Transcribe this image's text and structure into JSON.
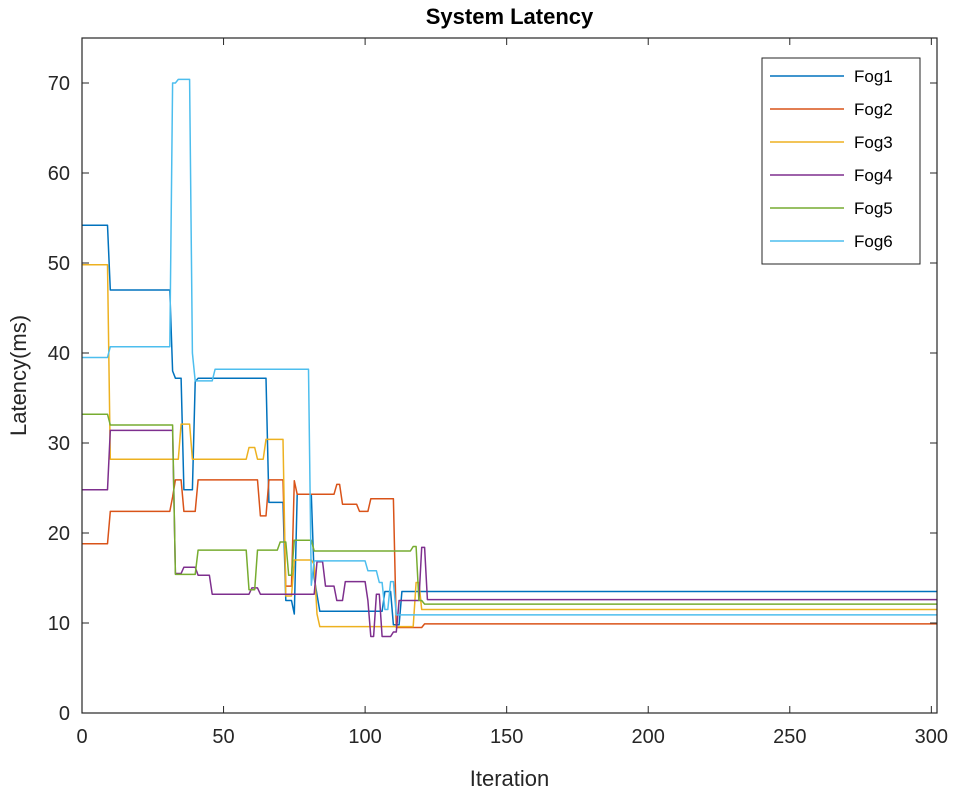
{
  "chart_data": {
    "type": "line",
    "title": "System Latency",
    "xlabel": "Iteration",
    "ylabel": "Latency(ms)",
    "xlim": [
      0,
      302
    ],
    "ylim": [
      0,
      75
    ],
    "xticks": [
      0,
      50,
      100,
      150,
      200,
      250,
      300
    ],
    "yticks": [
      0,
      10,
      20,
      30,
      40,
      50,
      60,
      70
    ],
    "legend_position": "top-right",
    "series": [
      {
        "name": "Fog1",
        "color": "#0072BD",
        "x": [
          0,
          9,
          10,
          31,
          32,
          33,
          35,
          36,
          39,
          40,
          41,
          65,
          66,
          71,
          72,
          74,
          75,
          76,
          81,
          82,
          84,
          106,
          107,
          109,
          110,
          112,
          113,
          302
        ],
        "y": [
          54.2,
          54.2,
          47,
          47,
          38,
          37.2,
          37.2,
          24.8,
          24.8,
          36.8,
          37.2,
          37.2,
          23.4,
          23.4,
          12.5,
          12.5,
          11,
          24.3,
          24.3,
          15,
          11.3,
          11.3,
          13.5,
          13.5,
          9.8,
          9.8,
          13.5,
          13.5
        ]
      },
      {
        "name": "Fog2",
        "color": "#D95319",
        "x": [
          0,
          9,
          10,
          31,
          32,
          33,
          35,
          36,
          40,
          41,
          59,
          60,
          62,
          63,
          65,
          66,
          71,
          72,
          74,
          75,
          76,
          82,
          83,
          89,
          90,
          91,
          92,
          97,
          98,
          101,
          102,
          104,
          105,
          110,
          111,
          112,
          119,
          120,
          121,
          122,
          302
        ],
        "y": [
          18.8,
          18.8,
          22.4,
          22.4,
          24,
          25.9,
          25.9,
          22.4,
          22.4,
          25.9,
          25.9,
          25.9,
          25.9,
          21.9,
          21.9,
          25.9,
          25.9,
          14.1,
          14.1,
          25.8,
          24.3,
          24.3,
          24.3,
          24.3,
          25.4,
          25.4,
          23.2,
          23.2,
          22.4,
          22.4,
          23.8,
          23.8,
          23.8,
          23.8,
          9.5,
          9.5,
          9.5,
          9.5,
          9.9,
          9.9,
          9.9
        ]
      },
      {
        "name": "Fog3",
        "color": "#EDB120",
        "x": [
          0,
          9,
          10,
          31,
          32,
          34,
          35,
          38,
          39,
          40,
          41,
          58,
          59,
          61,
          62,
          64,
          65,
          71,
          72,
          74,
          75,
          76,
          81,
          82,
          83,
          84,
          117,
          118,
          119,
          120,
          122,
          302
        ],
        "y": [
          49.8,
          49.8,
          28.2,
          28.2,
          28.2,
          28.2,
          32.1,
          32.1,
          28.2,
          28.2,
          28.2,
          28.2,
          29.5,
          29.5,
          28.2,
          28.2,
          30.4,
          30.4,
          13,
          13,
          17,
          17,
          17,
          16.5,
          11,
          9.6,
          9.6,
          14.5,
          14.5,
          11.5,
          11.5,
          11.5
        ]
      },
      {
        "name": "Fog4",
        "color": "#7E2F8E",
        "x": [
          0,
          9,
          10,
          31,
          32,
          33,
          35,
          36,
          40,
          41,
          45,
          46,
          59,
          60,
          62,
          63,
          71,
          72,
          74,
          75,
          82,
          83,
          85,
          86,
          89,
          90,
          92,
          93,
          100,
          101,
          102,
          103,
          104,
          105,
          106,
          107,
          108,
          109,
          110,
          111,
          112,
          119,
          120,
          121,
          122,
          302
        ],
        "y": [
          24.8,
          24.8,
          31.4,
          31.4,
          31.4,
          15.5,
          15.5,
          16.2,
          16.2,
          15.3,
          15.3,
          13.2,
          13.2,
          13.9,
          13.9,
          13.2,
          13.2,
          13.2,
          13.2,
          13.2,
          13.2,
          16.8,
          16.8,
          14.1,
          14.1,
          12.5,
          12.5,
          14.6,
          14.6,
          12.5,
          8.5,
          8.5,
          13.2,
          13.2,
          8.5,
          8.5,
          8.5,
          8.5,
          9,
          9,
          12.5,
          12.5,
          18.4,
          18.4,
          12.6,
          12.6
        ]
      },
      {
        "name": "Fog5",
        "color": "#77AC30",
        "x": [
          0,
          9,
          10,
          31,
          32,
          33,
          40,
          41,
          58,
          59,
          61,
          62,
          69,
          70,
          72,
          73,
          74,
          75,
          81,
          82,
          116,
          117,
          118,
          119,
          120,
          121,
          302
        ],
        "y": [
          33.2,
          33.2,
          32,
          32,
          32,
          15.4,
          15.4,
          18.1,
          18.1,
          13.7,
          13.7,
          18.1,
          18.1,
          19,
          19,
          15.3,
          15.3,
          19.2,
          19.2,
          18,
          18,
          18.5,
          18.5,
          12.5,
          12.5,
          12.1,
          12.1
        ]
      },
      {
        "name": "Fog6",
        "color": "#4DBEEE",
        "x": [
          0,
          9,
          10,
          31,
          32,
          33,
          34,
          35,
          38,
          39,
          40,
          41,
          46,
          47,
          80,
          81,
          82,
          83,
          100,
          101,
          104,
          105,
          106,
          107,
          108,
          109,
          110,
          111,
          120,
          121,
          302
        ],
        "y": [
          39.5,
          39.5,
          40.7,
          40.7,
          70,
          70,
          70.4,
          70.4,
          70.4,
          40,
          36.9,
          36.9,
          36.9,
          38.2,
          38.2,
          14.2,
          16.9,
          16.9,
          16.9,
          15.8,
          15.8,
          14.5,
          14.5,
          11.5,
          11.5,
          14.6,
          14.6,
          10.9,
          10.9,
          10.9,
          10.9
        ]
      }
    ]
  }
}
